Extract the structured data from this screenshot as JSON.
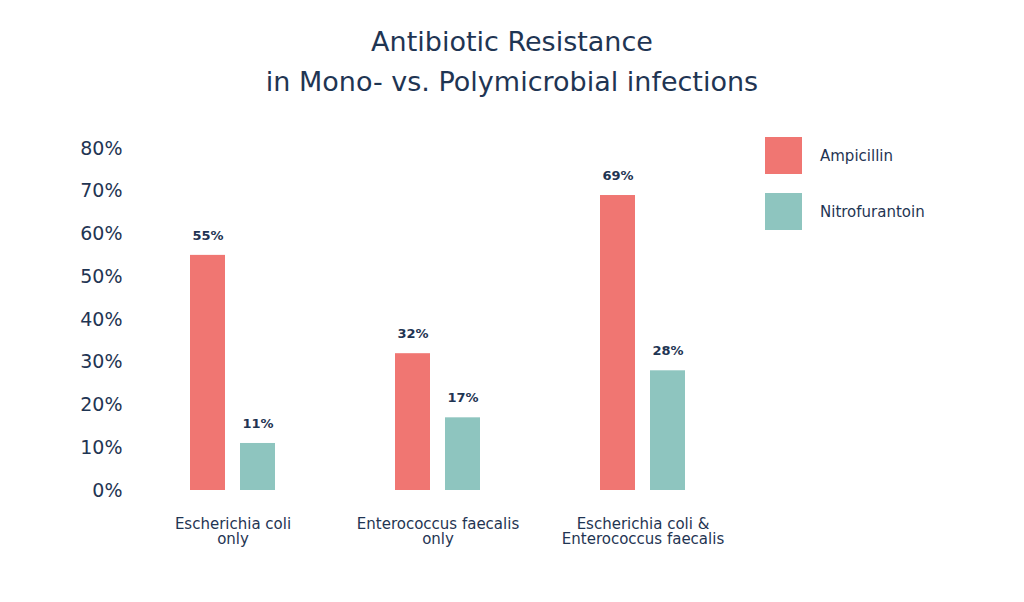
{
  "chart_data": {
    "type": "bar",
    "title": "Antibiotic Resistance\nin Mono- vs. Polymicrobial infections",
    "categories": [
      "Escherichia coli\nonly",
      "Enterococcus faecalis\nonly",
      "Escherichia coli &\nEnterococcus faecalis"
    ],
    "series": [
      {
        "name": "Ampicillin",
        "color": "#f07672",
        "values": [
          55,
          32,
          69
        ],
        "value_labels": [
          "55%",
          "32%",
          "69%"
        ]
      },
      {
        "name": "Nitrofurantoin",
        "color": "#8ec5bf",
        "values": [
          11,
          17,
          28
        ],
        "value_labels": [
          "11%",
          "17%",
          "28%"
        ]
      }
    ],
    "ylim": [
      0,
      80
    ],
    "yticks": [
      {
        "value": 0,
        "label": "0%"
      },
      {
        "value": 10,
        "label": "10%"
      },
      {
        "value": 20,
        "label": "20%"
      },
      {
        "value": 30,
        "label": "30%"
      },
      {
        "value": 40,
        "label": "40%"
      },
      {
        "value": 50,
        "label": "50%"
      },
      {
        "value": 60,
        "label": "60%"
      },
      {
        "value": 70,
        "label": "70%"
      },
      {
        "value": 80,
        "label": "80%"
      }
    ],
    "grid": false,
    "legend": "top-right",
    "data_labels": true
  }
}
